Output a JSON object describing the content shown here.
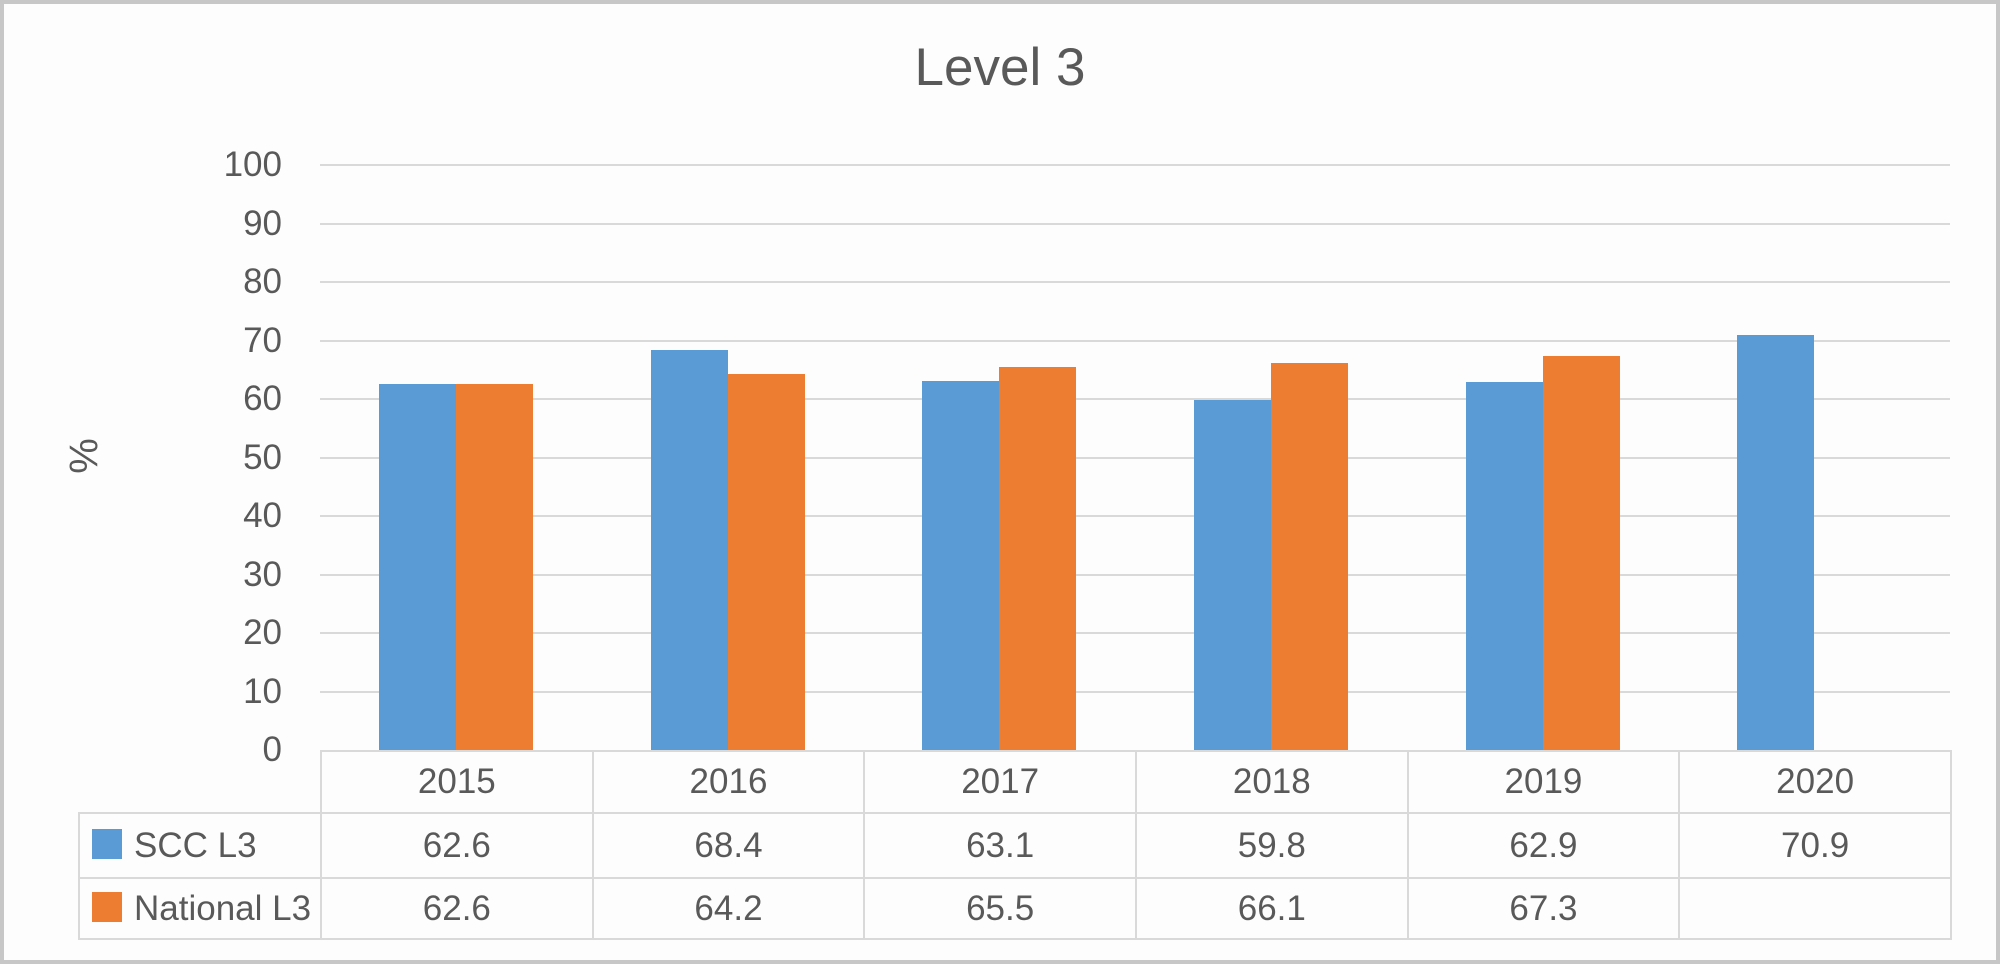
{
  "chart_data": {
    "type": "bar",
    "title": "Level 3",
    "ylabel": "%",
    "ylim": [
      0,
      100
    ],
    "ytick_step": 10,
    "grid": true,
    "legend_position": "table-left",
    "categories": [
      "2015",
      "2016",
      "2017",
      "2018",
      "2019",
      "2020"
    ],
    "series": [
      {
        "name": "SCC L3",
        "color": "#5B9BD5",
        "values": [
          62.6,
          68.4,
          63.1,
          59.8,
          62.9,
          70.9
        ]
      },
      {
        "name": "National L3",
        "color": "#ED7D31",
        "values": [
          62.6,
          64.2,
          65.5,
          66.1,
          67.3,
          null
        ]
      }
    ]
  },
  "colors": {
    "grid": "#D9D9D9",
    "text": "#595959",
    "table_border": "#D9D9D9",
    "frame_border": "#C7C7C7",
    "background": "#FDFDFD",
    "series_blue": "#5B9BD5",
    "series_orange": "#ED7D31"
  }
}
